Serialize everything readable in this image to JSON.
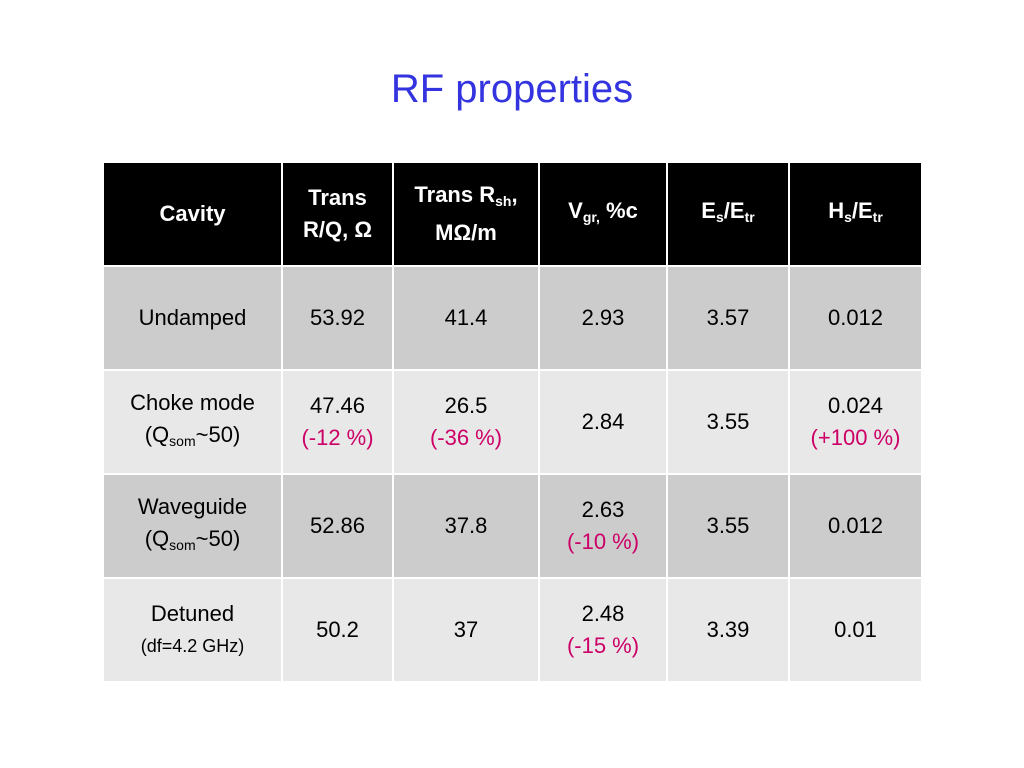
{
  "title": "RF properties",
  "table": {
    "headers": {
      "cavity": "Cavity",
      "trans_rq": {
        "line1": "Trans",
        "line2": "R/Q, Ω"
      },
      "trans_rsh": {
        "main": "Trans R",
        "sub": "sh",
        "tail": ",",
        "line2": "MΩ/m"
      },
      "vgr": {
        "main": "V",
        "sub": "gr,",
        "tail": " %c"
      },
      "es_etr": {
        "a": "E",
        "a_sub": "s",
        "slash": "/E",
        "b_sub": "tr"
      },
      "hs_etr": {
        "a": "H",
        "a_sub": "s",
        "slash": "/E",
        "b_sub": "tr"
      }
    },
    "rows": [
      {
        "cavity": {
          "line1": "Undamped"
        },
        "rq": {
          "value": "53.92"
        },
        "rsh": {
          "value": "41.4"
        },
        "vgr": {
          "value": "2.93"
        },
        "es": "3.57",
        "hs": {
          "value": "0.012"
        }
      },
      {
        "cavity": {
          "line1": "Choke mode",
          "line2_pre": "(Q",
          "line2_sub": "som",
          "line2_post": "~50)"
        },
        "rq": {
          "value": "47.46",
          "change": "(-12 %)"
        },
        "rsh": {
          "value": "26.5",
          "change": "(-36 %)"
        },
        "vgr": {
          "value": "2.84"
        },
        "es": "3.55",
        "hs": {
          "value": "0.024",
          "change": "(+100 %)"
        }
      },
      {
        "cavity": {
          "line1": "Waveguide",
          "line2_pre": "(Q",
          "line2_sub": "som",
          "line2_post": "~50)"
        },
        "rq": {
          "value": "52.86"
        },
        "rsh": {
          "value": "37.8"
        },
        "vgr": {
          "value": "2.63",
          "change": "(-10 %)"
        },
        "es": "3.55",
        "hs": {
          "value": "0.012"
        }
      },
      {
        "cavity": {
          "line1": "Detuned",
          "line2": "(df=4.2 GHz)"
        },
        "rq": {
          "value": "50.2"
        },
        "rsh": {
          "value": "37"
        },
        "vgr": {
          "value": "2.48",
          "change": "(-15 %)"
        },
        "es": "3.39",
        "hs": {
          "value": "0.01"
        }
      }
    ]
  }
}
